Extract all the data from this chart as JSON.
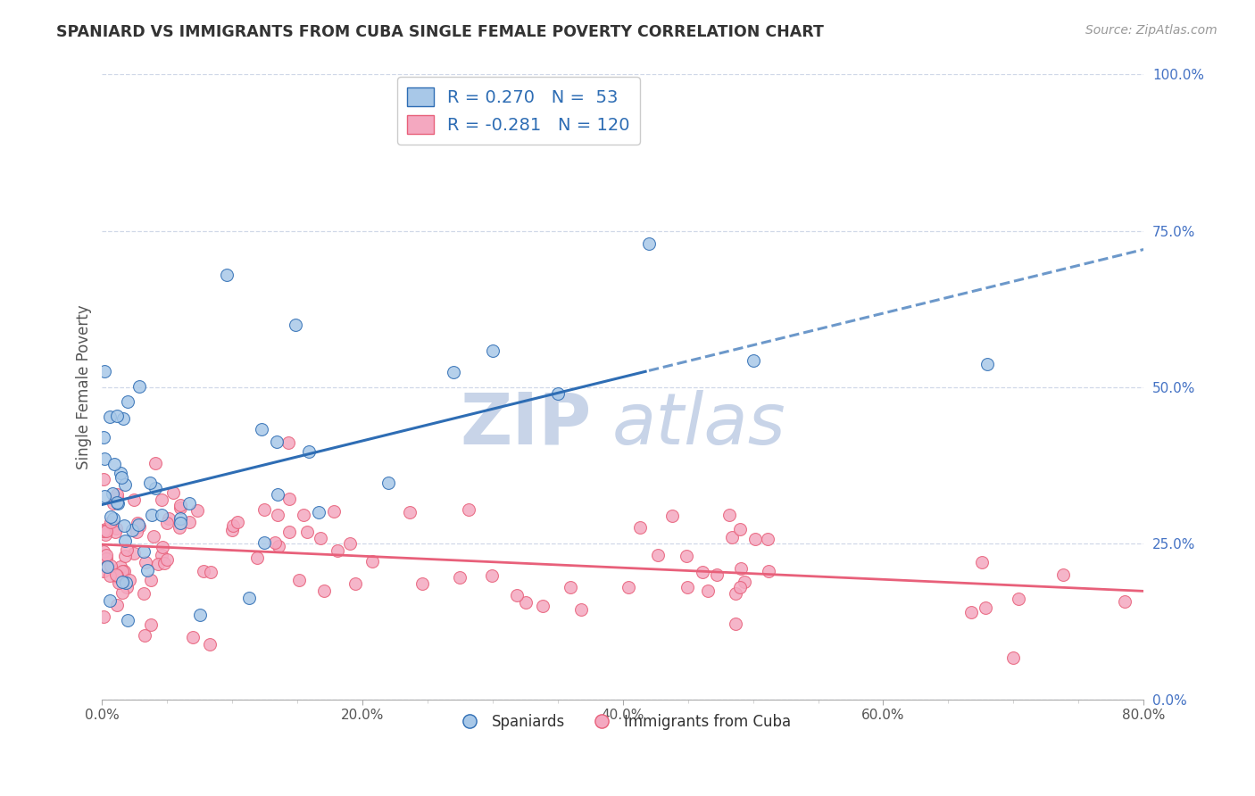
{
  "title": "SPANIARD VS IMMIGRANTS FROM CUBA SINGLE FEMALE POVERTY CORRELATION CHART",
  "source": "Source: ZipAtlas.com",
  "ylabel": "Single Female Poverty",
  "legend_labels": [
    "Spaniards",
    "Immigrants from Cuba"
  ],
  "spaniards_color": "#A8C8E8",
  "cuba_color": "#F4A8C0",
  "spaniards_line_color": "#2E6DB4",
  "cuba_line_color": "#E8607A",
  "R_spaniards": 0.27,
  "N_spaniards": 53,
  "R_cuba": -0.281,
  "N_cuba": 120,
  "background_color": "#FFFFFF",
  "grid_color": "#DDDDDD",
  "watermark_zip": "ZIP",
  "watermark_atlas": "atlas",
  "watermark_color": "#C8D4E8",
  "xlim": [
    0,
    80
  ],
  "ylim": [
    0,
    100
  ],
  "xtick_vals": [
    0,
    20,
    40,
    60,
    80
  ],
  "ytick_vals": [
    0,
    25,
    50,
    75,
    100
  ]
}
